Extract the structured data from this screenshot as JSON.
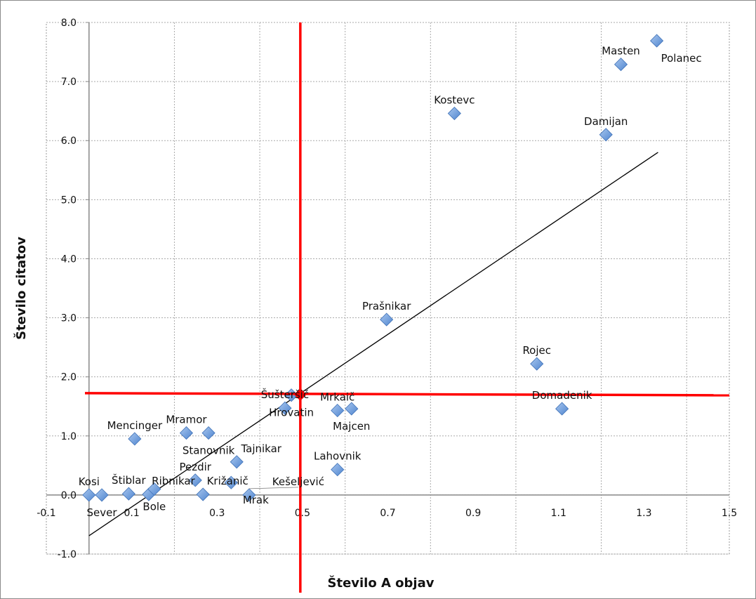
{
  "chart_data": {
    "type": "scatter",
    "title": "",
    "xlabel": "Število A objav",
    "ylabel": "Število citatov",
    "xlim": [
      -0.1,
      1.5
    ],
    "ylim": [
      -1.0,
      8.0
    ],
    "xticks": [
      "-0.1",
      "0.1",
      "0.3",
      "0.5",
      "0.7",
      "0.9",
      "1.1",
      "1.3",
      "1.5"
    ],
    "xtick_values": [
      -0.1,
      0.1,
      0.3,
      0.5,
      0.7,
      0.9,
      1.1,
      1.3,
      1.5
    ],
    "yticks": [
      "-1.0",
      "0.0",
      "1.0",
      "2.0",
      "3.0",
      "4.0",
      "5.0",
      "6.0",
      "7.0",
      "8.0"
    ],
    "ytick_values": [
      -1,
      0,
      1,
      2,
      3,
      4,
      5,
      6,
      7,
      8
    ],
    "grid": true,
    "marker_color": "#6a9bd8",
    "points": [
      {
        "name": "Kosi",
        "x": 0.0,
        "y": 0.0
      },
      {
        "name": "Sever",
        "x": 0.03,
        "y": 0.0
      },
      {
        "name": "Štiblar",
        "x": 0.093,
        "y": 0.02
      },
      {
        "name": "Mencinger",
        "x": 0.107,
        "y": 0.95
      },
      {
        "name": "Ribnikar",
        "x": 0.14,
        "y": 0.01
      },
      {
        "name": "Bole",
        "x": 0.153,
        "y": 0.1
      },
      {
        "name": "Mramor",
        "x": 0.228,
        "y": 1.05
      },
      {
        "name": "Pezdir",
        "x": 0.249,
        "y": 0.25
      },
      {
        "name": "Križanič",
        "x": 0.267,
        "y": 0.01
      },
      {
        "name": "Stanovnik",
        "x": 0.28,
        "y": 1.05
      },
      {
        "name": "Mrak",
        "x": 0.333,
        "y": 0.21
      },
      {
        "name": "Tajnikar",
        "x": 0.346,
        "y": 0.56
      },
      {
        "name": "Kešeljević",
        "x": 0.375,
        "y": 0.0
      },
      {
        "name": "Šušteršič",
        "x": 0.459,
        "y": 1.47
      },
      {
        "name": "Hrovatin",
        "x": 0.474,
        "y": 1.69
      },
      {
        "name": "Mrkaič",
        "x": 0.582,
        "y": 1.43
      },
      {
        "name": "Lahovnik",
        "x": 0.582,
        "y": 0.43
      },
      {
        "name": "Majcen",
        "x": 0.615,
        "y": 1.46
      },
      {
        "name": "Prašnikar",
        "x": 0.697,
        "y": 2.97
      },
      {
        "name": "Kostevc",
        "x": 0.856,
        "y": 6.46
      },
      {
        "name": "Rojec",
        "x": 1.049,
        "y": 2.22
      },
      {
        "name": "Domadenik",
        "x": 1.108,
        "y": 1.46
      },
      {
        "name": "Damijan",
        "x": 1.211,
        "y": 6.1
      },
      {
        "name": "Masten",
        "x": 1.246,
        "y": 7.29
      },
      {
        "name": "Polanec",
        "x": 1.33,
        "y": 7.69
      }
    ],
    "trendline": {
      "slope": 4.87,
      "intercept": -0.69,
      "x_range": [
        0.0,
        1.333
      ],
      "color": "#000000"
    },
    "reference_lines": {
      "x_mean": 0.495,
      "y_mean": 1.7,
      "color": "#ff0000"
    }
  }
}
